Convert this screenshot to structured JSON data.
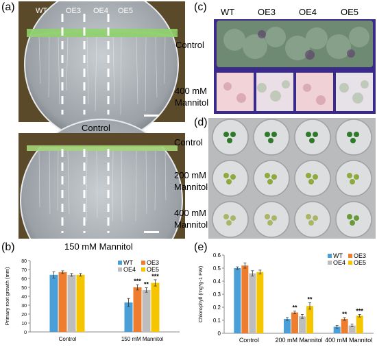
{
  "panels": {
    "a": {
      "letter": "(a)",
      "genotypes": [
        "WT",
        "OE3",
        "OE4",
        "OE5"
      ],
      "top_caption": "Control",
      "bottom_caption": "150 mM Mannitol"
    },
    "c": {
      "letter": "(c)",
      "genotypes": [
        "WT",
        "OE3",
        "OE4",
        "OE5"
      ],
      "row1": "Control",
      "row2_line1": "400 mM",
      "row2_line2": "Mannitol"
    },
    "d": {
      "letter": "(d)",
      "row1": "Control",
      "row2_line1": "200 mM",
      "row2_line2": "Mannitol",
      "row3_line1": "400 mM",
      "row3_line2": "Mannitol"
    },
    "b": {
      "letter": "(b)"
    },
    "e": {
      "letter": "(e)"
    }
  },
  "colors": {
    "WT": "#4a9fd8",
    "OE3": "#ef7d2f",
    "OE4": "#bdbdbd",
    "OE5": "#f5c500"
  },
  "chart_data": [
    {
      "id": "b",
      "type": "bar",
      "ylabel": "Primary root growth (mm)",
      "categories": [
        "Control",
        "150 mM Mannitol"
      ],
      "ylim": [
        0,
        80
      ],
      "yticks": [
        0,
        10,
        20,
        30,
        40,
        50,
        60,
        70,
        80
      ],
      "series": [
        {
          "name": "WT",
          "values": [
            64,
            33
          ],
          "errors": [
            3.5,
            4.5
          ],
          "sig": [
            "",
            ""
          ]
        },
        {
          "name": "OE3",
          "values": [
            67,
            50
          ],
          "errors": [
            1.5,
            3
          ],
          "sig": [
            "",
            "***"
          ]
        },
        {
          "name": "OE4",
          "values": [
            64,
            47
          ],
          "errors": [
            1.5,
            2.5
          ],
          "sig": [
            "",
            "**"
          ]
        },
        {
          "name": "OE5",
          "values": [
            64,
            55
          ],
          "errors": [
            1.5,
            3.5
          ],
          "sig": [
            "",
            "***"
          ]
        }
      ],
      "legend": "top-right"
    },
    {
      "id": "e",
      "type": "bar",
      "ylabel": "Chlorophyll (mg*g-1 FW)",
      "categories": [
        "Control",
        "200 mM Mannitol",
        "400 mM Mannitol"
      ],
      "ylim": [
        0,
        0.6
      ],
      "yticks": [
        "0",
        "0.1",
        "0.2",
        "0.3",
        "0.4",
        "0.5",
        "0.6"
      ],
      "series": [
        {
          "name": "WT",
          "values": [
            0.5,
            0.11,
            0.05
          ],
          "errors": [
            0.01,
            0.01,
            0.01
          ],
          "sig": [
            "",
            "",
            ""
          ]
        },
        {
          "name": "OE3",
          "values": [
            0.52,
            0.16,
            0.11
          ],
          "errors": [
            0.02,
            0.01,
            0.01
          ],
          "sig": [
            "",
            "**",
            "**"
          ]
        },
        {
          "name": "OE4",
          "values": [
            0.46,
            0.13,
            0.06
          ],
          "errors": [
            0.02,
            0.015,
            0.01
          ],
          "sig": [
            "",
            "",
            ""
          ]
        },
        {
          "name": "OE5",
          "values": [
            0.47,
            0.21,
            0.135
          ],
          "errors": [
            0.015,
            0.025,
            0.01
          ],
          "sig": [
            "",
            "**",
            "***"
          ]
        }
      ],
      "legend": "top-right"
    }
  ]
}
